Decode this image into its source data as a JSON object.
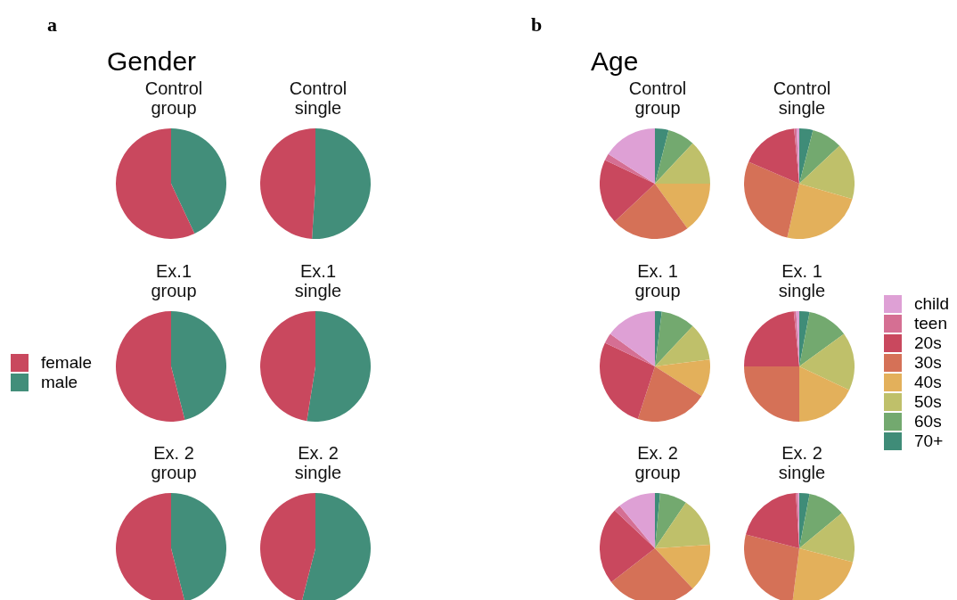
{
  "chart_data": [
    {
      "type": "pie",
      "title": "Control group",
      "annotations": [
        "a",
        "Gender"
      ],
      "legend": "left",
      "categories": [
        "female",
        "male"
      ],
      "values": [
        57,
        43
      ],
      "colors": [
        "#c9485e",
        "#428e7a"
      ]
    },
    {
      "type": "pie",
      "title": "Control single",
      "categories": [
        null,
        null
      ],
      "values": [
        49,
        51
      ],
      "colors": [
        "#c9485e",
        "#428e7a"
      ]
    },
    {
      "type": "pie",
      "title": "Ex.1 group",
      "categories": [
        null,
        null
      ],
      "values": [
        54,
        46
      ],
      "colors": [
        "#c9485e",
        "#428e7a"
      ]
    },
    {
      "type": "pie",
      "title": "Ex.1 single",
      "categories": [
        null,
        null
      ],
      "values": [
        47.5,
        52.5
      ],
      "colors": [
        "#c9485e",
        "#428e7a"
      ]
    },
    {
      "type": "pie",
      "title": "Ex. 2 group",
      "categories": [
        null,
        null
      ],
      "values": [
        54,
        46
      ],
      "colors": [
        "#c9485e",
        "#428e7a"
      ]
    },
    {
      "type": "pie",
      "title": "Ex. 2 single",
      "categories": [
        null,
        null
      ],
      "values": [
        46,
        54
      ],
      "colors": [
        "#c9485e",
        "#428e7a"
      ]
    },
    {
      "type": "pie",
      "title": "Control group",
      "annotations": [
        "b",
        "Age"
      ],
      "legend": "right",
      "categories": [
        "child",
        "teen",
        "20s",
        "30s",
        "40s",
        "50s",
        "60s",
        "70+"
      ],
      "values": [
        16,
        2,
        19,
        23,
        15,
        13,
        8,
        4
      ],
      "colors": [
        "#dea0d5",
        "#d56f93",
        "#c9485e",
        "#d57157",
        "#e3b05b",
        "#bfc06a",
        "#73a96f",
        "#3f8c78"
      ]
    },
    {
      "type": "pie",
      "title": "Control single",
      "categories": [
        null,
        null,
        null,
        null,
        null,
        null,
        null,
        null
      ],
      "values": [
        0.8,
        0.7,
        17,
        28,
        24,
        16.5,
        9,
        4
      ],
      "colors": [
        "#dea0d5",
        "#d56f93",
        "#c9485e",
        "#d57157",
        "#e3b05b",
        "#bfc06a",
        "#73a96f",
        "#3f8c78"
      ]
    },
    {
      "type": "pie",
      "title": "Ex. 1 group",
      "categories": [
        null,
        null,
        null,
        null,
        null,
        null,
        null,
        null
      ],
      "values": [
        15,
        3,
        27,
        21,
        11,
        11,
        10,
        2
      ],
      "colors": [
        "#dea0d5",
        "#d56f93",
        "#c9485e",
        "#d57157",
        "#e3b05b",
        "#bfc06a",
        "#73a96f",
        "#3f8c78"
      ]
    },
    {
      "type": "pie",
      "title": "Ex. 1 single",
      "categories": [
        null,
        null,
        null,
        null,
        null,
        null,
        null,
        null
      ],
      "values": [
        0.9,
        0.7,
        23.4,
        25,
        18,
        17,
        12,
        3
      ],
      "colors": [
        "#dea0d5",
        "#d56f93",
        "#c9485e",
        "#d57157",
        "#e3b05b",
        "#bfc06a",
        "#73a96f",
        "#3f8c78"
      ]
    },
    {
      "type": "pie",
      "title": "Ex. 2 group",
      "categories": [
        null,
        null,
        null,
        null,
        null,
        null,
        null,
        null
      ],
      "values": [
        11,
        2,
        22.5,
        26.5,
        14,
        14.5,
        8,
        1.5
      ],
      "colors": [
        "#dea0d5",
        "#d56f93",
        "#c9485e",
        "#d57157",
        "#e3b05b",
        "#bfc06a",
        "#73a96f",
        "#3f8c78"
      ]
    },
    {
      "type": "pie",
      "title": "Ex. 2 single",
      "categories": [
        null,
        null,
        null,
        null,
        null,
        null,
        null,
        null
      ],
      "values": [
        0.4,
        0.6,
        20,
        27,
        23,
        15,
        11,
        3
      ],
      "colors": [
        "#dea0d5",
        "#d56f93",
        "#c9485e",
        "#d57157",
        "#e3b05b",
        "#bfc06a",
        "#73a96f",
        "#3f8c78"
      ]
    }
  ]
}
